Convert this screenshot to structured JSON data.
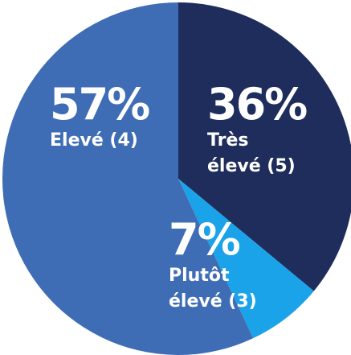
{
  "chart_data": {
    "type": "pie",
    "categories": [
      "Très élevé (5)",
      "Plutôt élevé (3)",
      "Elevé (4)"
    ],
    "values": [
      36,
      7,
      57
    ],
    "value_labels": [
      "36%",
      "7%",
      "57%"
    ],
    "colors": [
      "#1f2d5c",
      "#1aa3e8",
      "#3f6db5"
    ]
  }
}
